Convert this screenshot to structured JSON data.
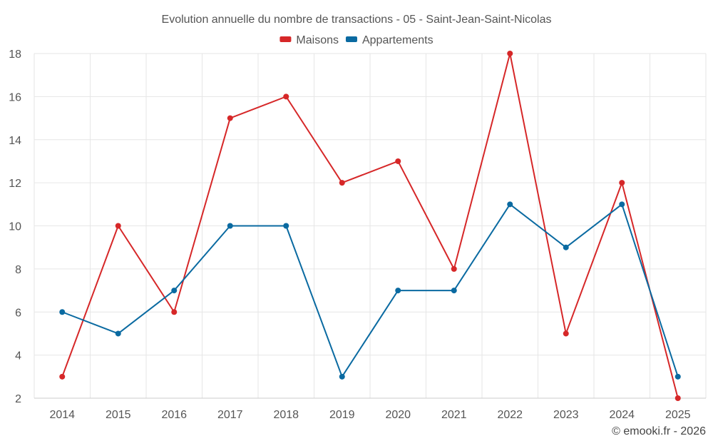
{
  "chart_data": {
    "type": "line",
    "title": "Evolution annuelle du nombre de transactions - 05 - Saint-Jean-Saint-Nicolas",
    "xlabel": "",
    "ylabel": "",
    "categories": [
      "2014",
      "2015",
      "2016",
      "2017",
      "2018",
      "2019",
      "2020",
      "2021",
      "2022",
      "2023",
      "2024",
      "2025"
    ],
    "ylim": [
      2,
      18
    ],
    "yticks": [
      2,
      4,
      6,
      8,
      10,
      12,
      14,
      16,
      18
    ],
    "grid": true,
    "legend_position": "top-center",
    "series": [
      {
        "name": "Maisons",
        "color": "#d62728",
        "values": [
          3,
          10,
          6,
          15,
          16,
          12,
          13,
          8,
          18,
          5,
          12,
          2
        ]
      },
      {
        "name": "Appartements",
        "color": "#0a6aa1",
        "values": [
          6,
          5,
          7,
          10,
          10,
          3,
          7,
          7,
          11,
          9,
          11,
          3
        ]
      }
    ]
  },
  "credit": "© emooki.fr - 2026"
}
